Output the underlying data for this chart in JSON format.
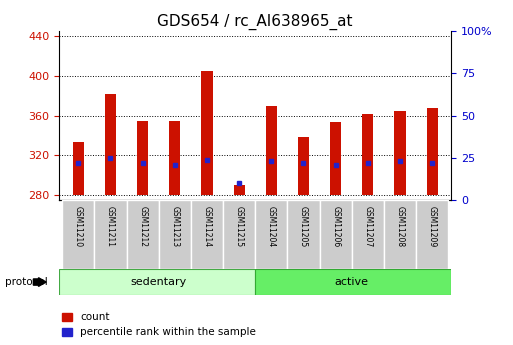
{
  "title": "GDS654 / rc_AI638965_at",
  "samples": [
    "GSM11210",
    "GSM11211",
    "GSM11212",
    "GSM11213",
    "GSM11214",
    "GSM11215",
    "GSM11204",
    "GSM11205",
    "GSM11206",
    "GSM11207",
    "GSM11208",
    "GSM11209"
  ],
  "groups": [
    "sedentary",
    "sedentary",
    "sedentary",
    "sedentary",
    "sedentary",
    "sedentary",
    "active",
    "active",
    "active",
    "active",
    "active",
    "active"
  ],
  "count_values": [
    333,
    382,
    355,
    355,
    405,
    290,
    370,
    338,
    354,
    362,
    365,
    368
  ],
  "percentile_values": [
    22,
    25,
    22,
    21,
    24,
    10,
    23,
    22,
    21,
    22,
    23,
    22
  ],
  "ylim_left": [
    275,
    445
  ],
  "ylim_right": [
    0,
    100
  ],
  "bar_bottom": 280,
  "bar_color": "#cc1100",
  "blue_color": "#2222cc",
  "title_fontsize": 11,
  "tick_color_left": "#cc1100",
  "tick_color_right": "#0000cc",
  "left_ticks": [
    280,
    320,
    360,
    400,
    440
  ],
  "right_ticks": [
    0,
    25,
    50,
    75,
    100
  ],
  "protocol_label": "protocol",
  "legend_count": "count",
  "legend_percentile": "percentile rank within the sample",
  "sedentary_color": "#ccffcc",
  "active_color": "#66ee66",
  "label_box_color": "#cccccc",
  "bar_width": 0.35
}
